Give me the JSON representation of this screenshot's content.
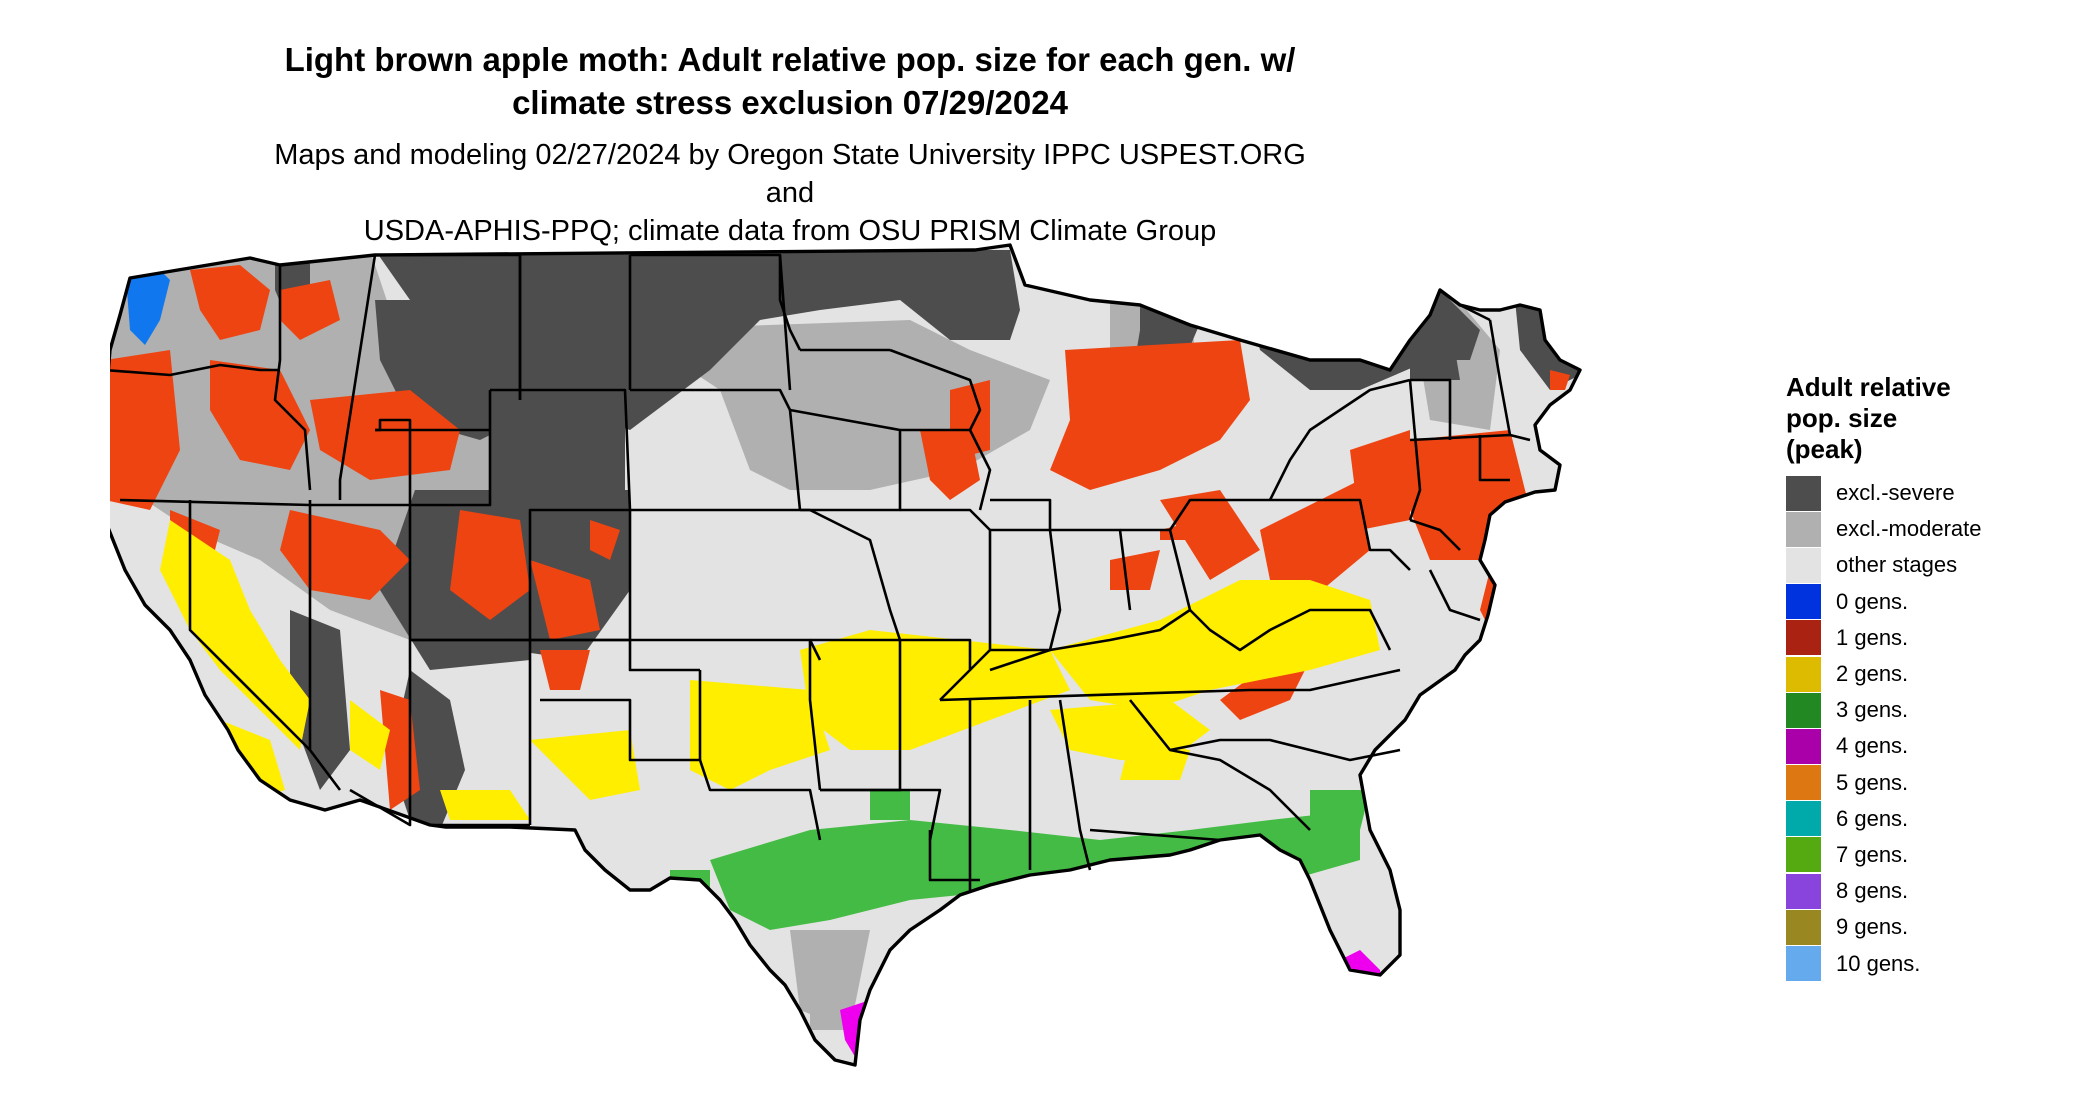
{
  "title": {
    "line1": "Light brown apple moth: Adult relative pop. size for each gen. w/",
    "line2": "climate stress exclusion 07/29/2024"
  },
  "subtitle": {
    "line1": "Maps and modeling 02/27/2024 by Oregon State University IPPC USPEST.ORG and",
    "line2": "USDA-APHIS-PPQ; climate data from OSU PRISM Climate Group"
  },
  "legend": {
    "title_line1": "Adult relative",
    "title_line2": "pop. size",
    "title_line3": "(peak)",
    "items": [
      {
        "label": "excl.-severe",
        "color": "#4d4d4d"
      },
      {
        "label": "excl.-moderate",
        "color": "#b0b0b0"
      },
      {
        "label": "other stages",
        "color": "#e3e3e3"
      },
      {
        "label": "0 gens.",
        "color": "#0033dd"
      },
      {
        "label": "1 gens.",
        "color": "#aa2211"
      },
      {
        "label": "2 gens.",
        "color": "#ddbb00"
      },
      {
        "label": "3 gens.",
        "color": "#228822"
      },
      {
        "label": "4 gens.",
        "color": "#aa00aa"
      },
      {
        "label": "5 gens.",
        "color": "#dd7711"
      },
      {
        "label": "6 gens.",
        "color": "#00aaaa"
      },
      {
        "label": "7 gens.",
        "color": "#55aa11"
      },
      {
        "label": "8 gens.",
        "color": "#8844dd"
      },
      {
        "label": "9 gens.",
        "color": "#998822"
      },
      {
        "label": "10 gens.",
        "color": "#66aaee"
      }
    ]
  },
  "map_colors": {
    "severe": "#4d4d4d",
    "moderate": "#b0b0b0",
    "other": "#e3e3e3",
    "one_gen": "#ee4411",
    "two_gen": "#ffee00",
    "three_gen": "#44bb44",
    "four_gen": "#ee00ee",
    "zero_gen": "#1177ee"
  }
}
